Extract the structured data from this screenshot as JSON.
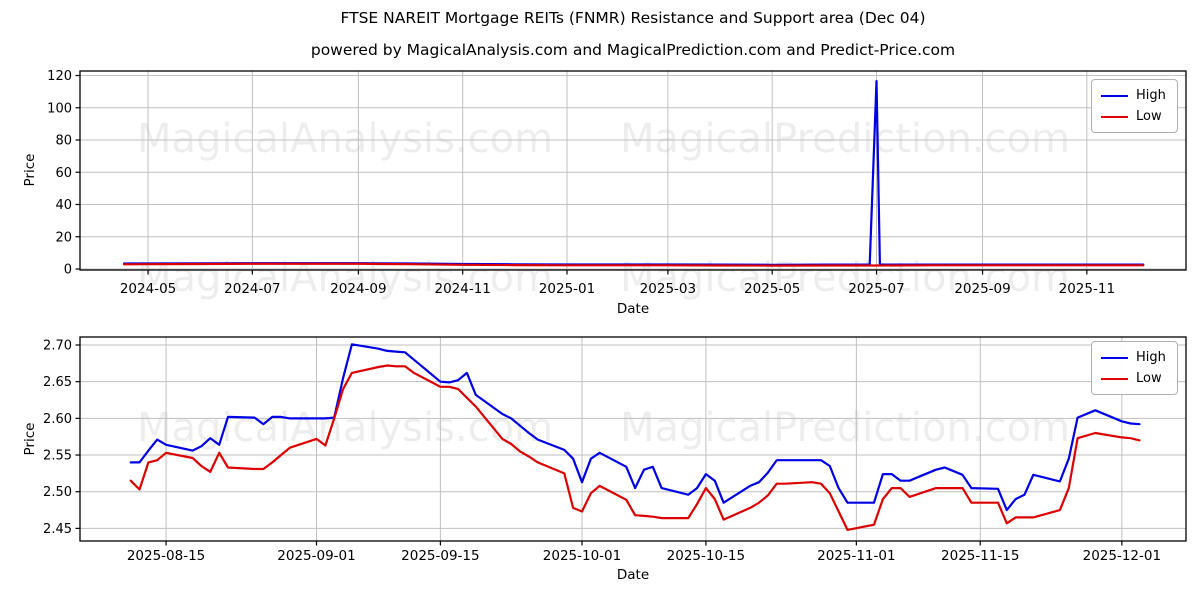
{
  "title": "FTSE NAREIT Mortgage REITs (FNMR) Resistance and Support area (Dec 04)",
  "subtitle": "powered by MagicalAnalysis.com and MagicalPrediction.com and Predict-Price.com",
  "watermarks": [
    "MagicalAnalysis.com",
    "MagicalPrediction.com"
  ],
  "colors": {
    "high": "#0000e6",
    "low": "#dc0000",
    "grid": "#bfbfbf",
    "spine": "#000000",
    "watermark": "#000000"
  },
  "chart_data": [
    {
      "name": "overview",
      "type": "line",
      "xlabel": "Date",
      "ylabel": "Price",
      "grid": true,
      "legend_position": "upper right",
      "ylim": [
        -4,
        123
      ],
      "yticks": [
        {
          "value": 0,
          "label": "0"
        },
        {
          "value": 20,
          "label": "20"
        },
        {
          "value": 40,
          "label": "40"
        },
        {
          "value": 60,
          "label": "60"
        },
        {
          "value": 80,
          "label": "80"
        },
        {
          "value": 100,
          "label": "100"
        },
        {
          "value": 120,
          "label": "120"
        }
      ],
      "xticks": [
        {
          "date": "2024-05-01",
          "label": "2024-05"
        },
        {
          "date": "2024-07-01",
          "label": "2024-07"
        },
        {
          "date": "2024-09-01",
          "label": "2024-09"
        },
        {
          "date": "2024-11-01",
          "label": "2024-11"
        },
        {
          "date": "2025-01-01",
          "label": "2025-01"
        },
        {
          "date": "2025-03-01",
          "label": "2025-03"
        },
        {
          "date": "2025-05-01",
          "label": "2025-05"
        },
        {
          "date": "2025-07-01",
          "label": "2025-07"
        },
        {
          "date": "2025-09-01",
          "label": "2025-09"
        },
        {
          "date": "2025-11-01",
          "label": "2025-11"
        }
      ],
      "series": [
        {
          "name": "High",
          "color_key": "high",
          "dates": [
            "2024-04-17",
            "2024-05-01",
            "2024-06-01",
            "2024-07-01",
            "2024-08-01",
            "2024-09-01",
            "2024-10-01",
            "2024-11-01",
            "2024-12-01",
            "2025-01-01",
            "2025-02-01",
            "2025-03-01",
            "2025-04-01",
            "2025-05-01",
            "2025-06-01",
            "2025-06-27",
            "2025-07-01",
            "2025-07-03",
            "2025-08-01",
            "2025-09-01",
            "2025-10-01",
            "2025-11-01",
            "2025-12-04"
          ],
          "values": [
            3.4,
            3.4,
            3.5,
            3.6,
            3.6,
            3.6,
            3.4,
            3.1,
            2.9,
            2.8,
            2.8,
            2.8,
            2.7,
            2.6,
            2.7,
            2.7,
            116.5,
            2.7,
            2.7,
            2.7,
            2.7,
            2.7,
            2.7
          ]
        },
        {
          "name": "Low",
          "color_key": "low",
          "dates": [
            "2024-04-17",
            "2024-05-01",
            "2024-06-01",
            "2024-07-01",
            "2024-08-01",
            "2024-09-01",
            "2024-10-01",
            "2024-11-01",
            "2024-12-01",
            "2025-01-01",
            "2025-02-01",
            "2025-03-01",
            "2025-04-01",
            "2025-05-01",
            "2025-06-01",
            "2025-06-27",
            "2025-07-01",
            "2025-07-03",
            "2025-08-01",
            "2025-09-01",
            "2025-10-01",
            "2025-11-01",
            "2025-12-04"
          ],
          "values": [
            2.9,
            3.0,
            3.1,
            3.2,
            3.2,
            3.2,
            3.0,
            2.6,
            2.4,
            2.3,
            2.3,
            2.3,
            2.2,
            2.1,
            2.2,
            2.2,
            2.2,
            2.2,
            2.3,
            2.3,
            2.3,
            2.3,
            2.3
          ]
        }
      ]
    },
    {
      "name": "recent-detail",
      "type": "line",
      "xlabel": "Date",
      "ylabel": "Price",
      "grid": true,
      "legend_position": "upper right",
      "ylim": [
        2.433,
        2.711
      ],
      "yticks": [
        {
          "value": 2.45,
          "label": "2.45"
        },
        {
          "value": 2.5,
          "label": "2.50"
        },
        {
          "value": 2.55,
          "label": "2.55"
        },
        {
          "value": 2.6,
          "label": "2.60"
        },
        {
          "value": 2.65,
          "label": "2.65"
        },
        {
          "value": 2.7,
          "label": "2.70"
        }
      ],
      "xticks": [
        {
          "date": "2025-08-15",
          "label": "2025-08-15"
        },
        {
          "date": "2025-09-01",
          "label": "2025-09-01"
        },
        {
          "date": "2025-09-15",
          "label": "2025-09-15"
        },
        {
          "date": "2025-10-01",
          "label": "2025-10-01"
        },
        {
          "date": "2025-10-15",
          "label": "2025-10-15"
        },
        {
          "date": "2025-11-01",
          "label": "2025-11-01"
        },
        {
          "date": "2025-11-15",
          "label": "2025-11-15"
        },
        {
          "date": "2025-12-01",
          "label": "2025-12-01"
        }
      ],
      "series": [
        {
          "name": "High",
          "color_key": "high",
          "dates": [
            "2025-08-11",
            "2025-08-12",
            "2025-08-13",
            "2025-08-14",
            "2025-08-15",
            "2025-08-18",
            "2025-08-19",
            "2025-08-20",
            "2025-08-21",
            "2025-08-22",
            "2025-08-25",
            "2025-08-26",
            "2025-08-27",
            "2025-08-28",
            "2025-08-29",
            "2025-09-01",
            "2025-09-02",
            "2025-09-03",
            "2025-09-04",
            "2025-09-05",
            "2025-09-08",
            "2025-09-09",
            "2025-09-10",
            "2025-09-11",
            "2025-09-12",
            "2025-09-15",
            "2025-09-16",
            "2025-09-17",
            "2025-09-18",
            "2025-09-19",
            "2025-09-22",
            "2025-09-23",
            "2025-09-24",
            "2025-09-25",
            "2025-09-26",
            "2025-09-29",
            "2025-09-30",
            "2025-10-01",
            "2025-10-02",
            "2025-10-03",
            "2025-10-06",
            "2025-10-07",
            "2025-10-08",
            "2025-10-09",
            "2025-10-10",
            "2025-10-13",
            "2025-10-14",
            "2025-10-15",
            "2025-10-16",
            "2025-10-17",
            "2025-10-20",
            "2025-10-21",
            "2025-10-22",
            "2025-10-23",
            "2025-10-24",
            "2025-10-27",
            "2025-10-28",
            "2025-10-29",
            "2025-10-30",
            "2025-10-31",
            "2025-11-03",
            "2025-11-04",
            "2025-11-05",
            "2025-11-06",
            "2025-11-07",
            "2025-11-10",
            "2025-11-11",
            "2025-11-12",
            "2025-11-13",
            "2025-11-14",
            "2025-11-17",
            "2025-11-18",
            "2025-11-19",
            "2025-11-20",
            "2025-11-21",
            "2025-11-24",
            "2025-11-25",
            "2025-11-26",
            "2025-11-28",
            "2025-12-01",
            "2025-12-02",
            "2025-12-03"
          ],
          "values": [
            2.54,
            2.54,
            2.556,
            2.571,
            2.564,
            2.556,
            2.562,
            2.573,
            2.564,
            2.602,
            2.601,
            2.592,
            2.602,
            2.602,
            2.6,
            2.6,
            2.6,
            2.601,
            2.655,
            2.701,
            2.695,
            2.692,
            2.691,
            2.69,
            2.68,
            2.65,
            2.649,
            2.652,
            2.662,
            2.632,
            2.606,
            2.6,
            2.59,
            2.58,
            2.571,
            2.557,
            2.545,
            2.513,
            2.545,
            2.553,
            2.534,
            2.505,
            2.53,
            2.534,
            2.505,
            2.496,
            2.505,
            2.524,
            2.515,
            2.485,
            2.508,
            2.513,
            2.526,
            2.543,
            2.543,
            2.543,
            2.543,
            2.535,
            2.505,
            2.485,
            2.485,
            2.524,
            2.524,
            2.515,
            2.515,
            2.53,
            2.533,
            2.528,
            2.523,
            2.505,
            2.504,
            2.475,
            2.49,
            2.496,
            2.523,
            2.514,
            2.545,
            2.601,
            2.611,
            2.596,
            2.593,
            2.592
          ]
        },
        {
          "name": "Low",
          "color_key": "low",
          "dates": [
            "2025-08-11",
            "2025-08-12",
            "2025-08-13",
            "2025-08-14",
            "2025-08-15",
            "2025-08-18",
            "2025-08-19",
            "2025-08-20",
            "2025-08-21",
            "2025-08-22",
            "2025-08-25",
            "2025-08-26",
            "2025-08-27",
            "2025-08-28",
            "2025-08-29",
            "2025-09-01",
            "2025-09-02",
            "2025-09-03",
            "2025-09-04",
            "2025-09-05",
            "2025-09-08",
            "2025-09-09",
            "2025-09-10",
            "2025-09-11",
            "2025-09-12",
            "2025-09-15",
            "2025-09-16",
            "2025-09-17",
            "2025-09-18",
            "2025-09-19",
            "2025-09-22",
            "2025-09-23",
            "2025-09-24",
            "2025-09-25",
            "2025-09-26",
            "2025-09-29",
            "2025-09-30",
            "2025-10-01",
            "2025-10-02",
            "2025-10-03",
            "2025-10-06",
            "2025-10-07",
            "2025-10-08",
            "2025-10-09",
            "2025-10-10",
            "2025-10-13",
            "2025-10-14",
            "2025-10-15",
            "2025-10-16",
            "2025-10-17",
            "2025-10-20",
            "2025-10-21",
            "2025-10-22",
            "2025-10-23",
            "2025-10-24",
            "2025-10-27",
            "2025-10-28",
            "2025-10-29",
            "2025-10-30",
            "2025-10-31",
            "2025-11-03",
            "2025-11-04",
            "2025-11-05",
            "2025-11-06",
            "2025-11-07",
            "2025-11-10",
            "2025-11-11",
            "2025-11-12",
            "2025-11-13",
            "2025-11-14",
            "2025-11-17",
            "2025-11-18",
            "2025-11-19",
            "2025-11-20",
            "2025-11-21",
            "2025-11-24",
            "2025-11-25",
            "2025-11-26",
            "2025-11-28",
            "2025-12-01",
            "2025-12-02",
            "2025-12-03"
          ],
          "values": [
            2.515,
            2.503,
            2.54,
            2.543,
            2.553,
            2.546,
            2.535,
            2.527,
            2.553,
            2.533,
            2.531,
            2.531,
            2.54,
            2.55,
            2.56,
            2.572,
            2.563,
            2.6,
            2.64,
            2.662,
            2.67,
            2.672,
            2.671,
            2.671,
            2.662,
            2.643,
            2.643,
            2.64,
            2.628,
            2.616,
            2.572,
            2.565,
            2.555,
            2.548,
            2.54,
            2.525,
            2.478,
            2.473,
            2.498,
            2.508,
            2.489,
            2.468,
            2.467,
            2.466,
            2.464,
            2.464,
            2.483,
            2.505,
            2.49,
            2.462,
            2.478,
            2.485,
            2.495,
            2.511,
            2.511,
            2.513,
            2.511,
            2.498,
            2.473,
            2.448,
            2.455,
            2.49,
            2.505,
            2.505,
            2.493,
            2.505,
            2.505,
            2.505,
            2.505,
            2.485,
            2.485,
            2.457,
            2.465,
            2.465,
            2.465,
            2.475,
            2.505,
            2.573,
            2.58,
            2.574,
            2.573,
            2.57
          ]
        }
      ]
    }
  ]
}
